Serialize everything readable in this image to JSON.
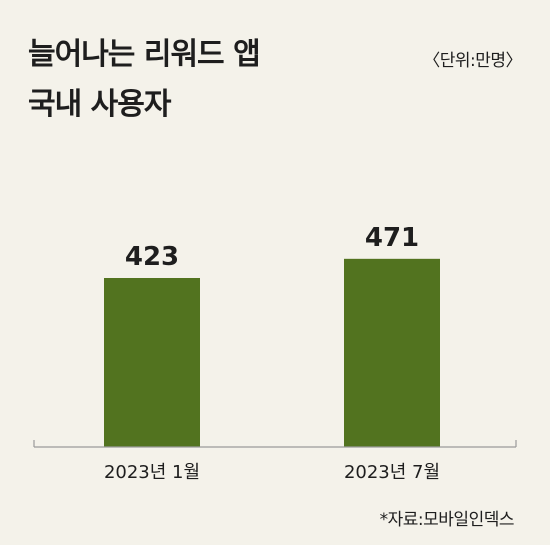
{
  "title_line1": "늘어나는 리워드 앱",
  "title_line2": "국내 사용자",
  "unit": "〈단위:만명〉",
  "source": "*자료:모바일인덱스",
  "colors": {
    "bar": "#52731f",
    "background": "#f4f2ea",
    "axis": "#9a9a9a"
  },
  "chart_data": {
    "type": "bar",
    "categories": [
      "2023년 1월",
      "2023년 7월"
    ],
    "values": [
      423,
      471
    ],
    "title": "늘어나는 리워드 앱 국내 사용자",
    "unit": "〈단위:만명〉",
    "data_labels": [
      "423",
      "471"
    ]
  }
}
